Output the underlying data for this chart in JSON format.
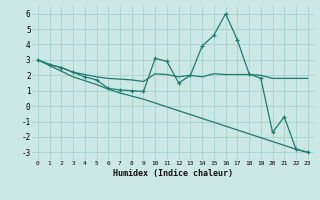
{
  "xlabel": "Humidex (Indice chaleur)",
  "background_color": "#cce8e4",
  "grid_color": "#aacfca",
  "line_color": "#1e7b6e",
  "xlim": [
    -0.5,
    23.5
  ],
  "ylim": [
    -3.5,
    6.5
  ],
  "yticks": [
    -3,
    -2,
    -1,
    0,
    1,
    2,
    3,
    4,
    5,
    6
  ],
  "xticks": [
    0,
    1,
    2,
    3,
    4,
    5,
    6,
    7,
    8,
    9,
    10,
    11,
    12,
    13,
    14,
    15,
    16,
    17,
    18,
    19,
    20,
    21,
    22,
    23
  ],
  "line1_x": [
    0,
    1,
    2,
    3,
    4,
    5,
    6,
    7,
    8,
    9,
    10,
    11,
    12,
    13,
    14,
    15,
    16,
    17,
    18,
    19,
    20,
    21,
    22,
    23
  ],
  "line1_y": [
    3.0,
    2.7,
    2.5,
    2.2,
    2.05,
    1.9,
    1.8,
    1.75,
    1.7,
    1.6,
    2.1,
    2.05,
    1.9,
    2.0,
    1.9,
    2.1,
    2.05,
    2.05,
    2.05,
    2.0,
    1.8,
    1.8,
    1.8,
    1.8
  ],
  "line2_x": [
    0,
    1,
    2,
    3,
    4,
    5,
    6,
    7,
    8,
    9,
    10,
    11,
    12,
    13,
    14,
    15,
    16,
    17,
    18,
    19,
    20,
    21,
    22,
    23
  ],
  "line2_y": [
    3.0,
    2.7,
    2.5,
    2.2,
    1.9,
    1.7,
    1.15,
    1.05,
    1.0,
    0.95,
    3.1,
    2.9,
    1.5,
    2.0,
    3.9,
    4.6,
    6.0,
    4.3,
    2.1,
    1.8,
    -1.7,
    -0.7,
    -2.8,
    -3.0
  ],
  "line3_x": [
    0,
    3,
    4,
    5,
    6,
    7,
    8,
    9,
    10,
    11,
    12,
    13,
    14,
    15,
    16,
    17,
    18,
    19,
    20,
    21,
    22,
    23
  ],
  "line3_y": [
    3.0,
    1.9,
    1.65,
    1.4,
    1.1,
    0.85,
    0.65,
    0.45,
    0.2,
    -0.05,
    -0.3,
    -0.55,
    -0.8,
    -1.05,
    -1.3,
    -1.55,
    -1.8,
    -2.05,
    -2.3,
    -2.55,
    -2.8,
    -3.0
  ]
}
